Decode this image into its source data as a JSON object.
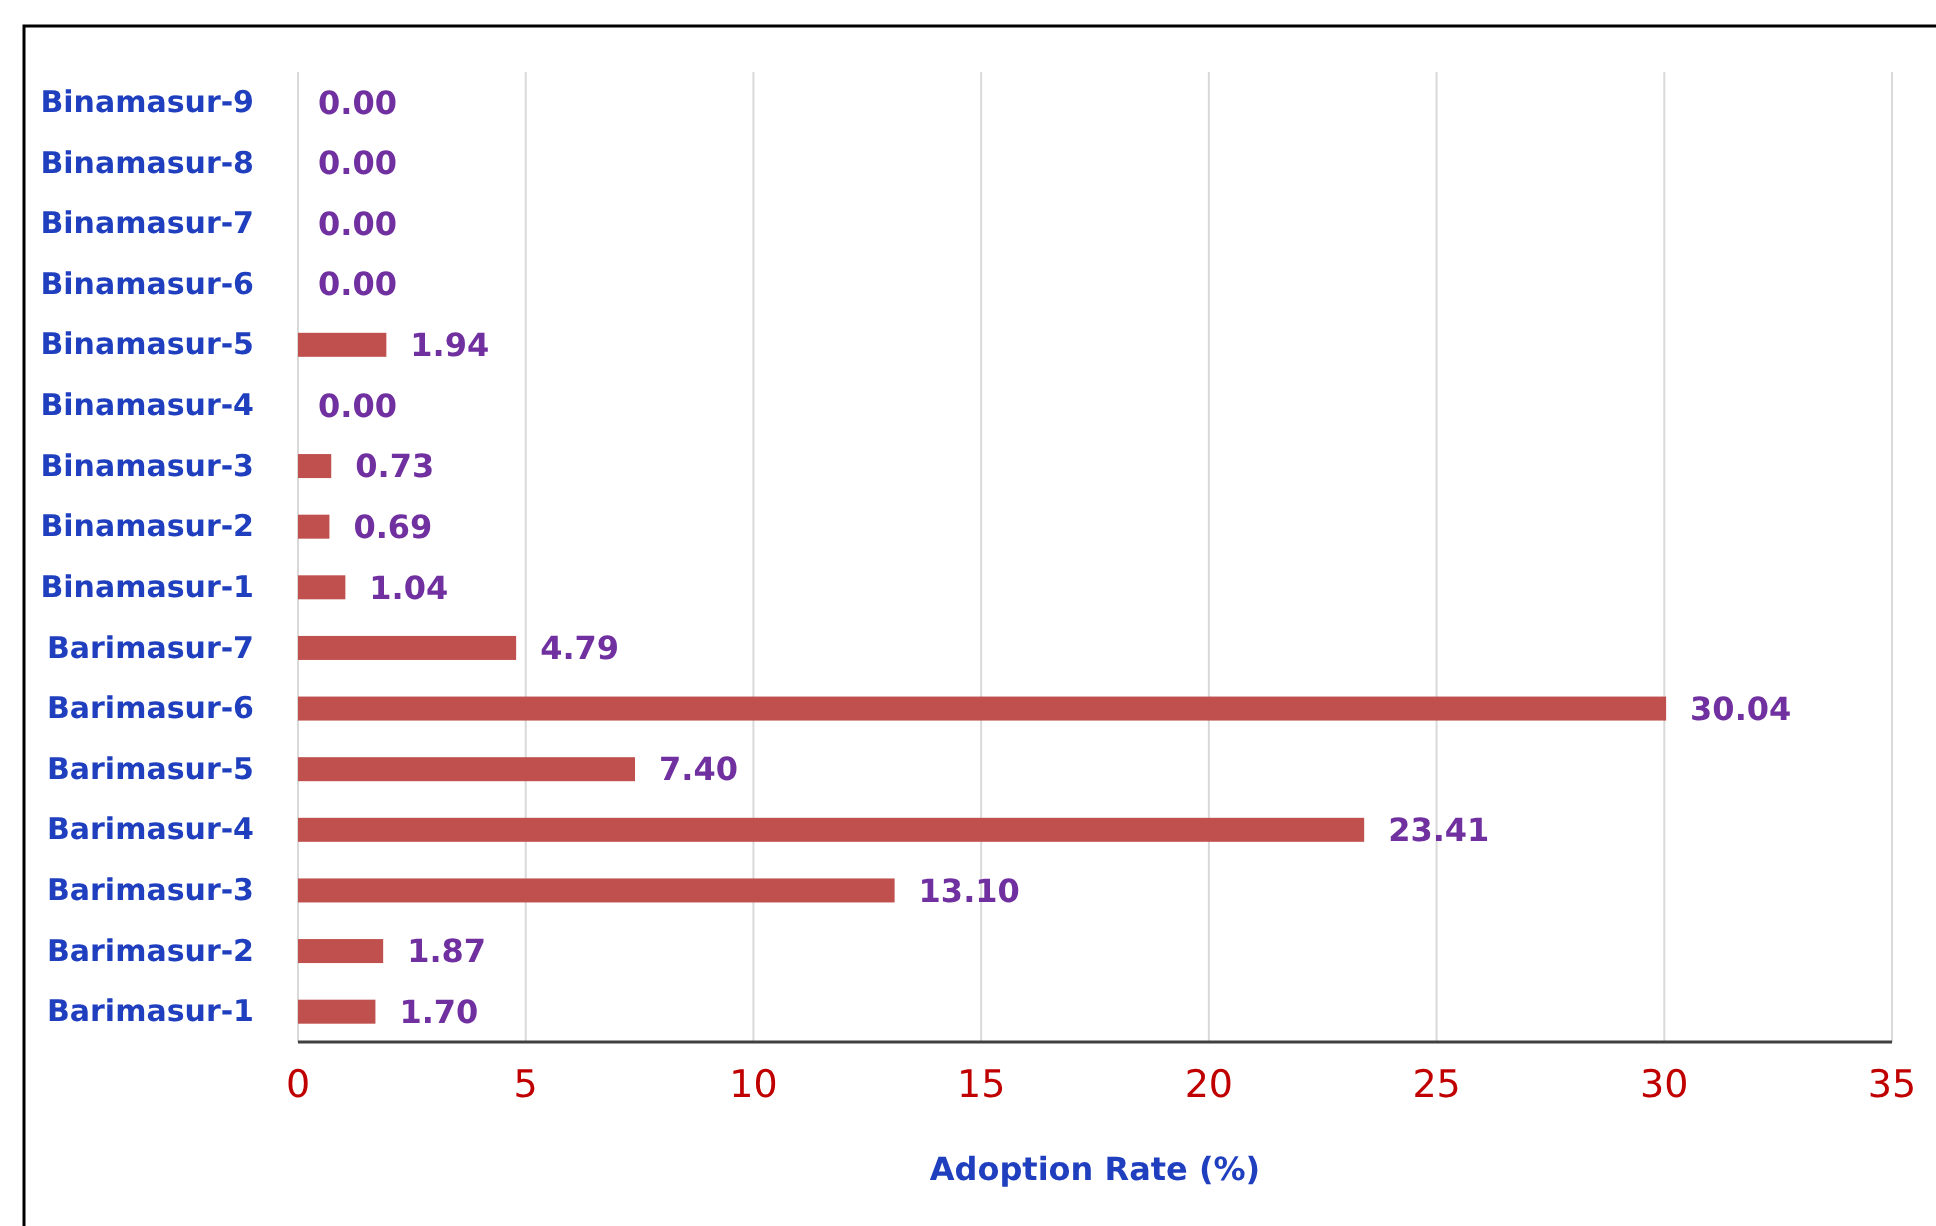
{
  "chart_data": {
    "type": "bar",
    "orientation": "horizontal",
    "xlabel": "Adoption Rate (%)",
    "categories": [
      "Binamasur-9",
      "Binamasur-8",
      "Binamasur-7",
      "Binamasur-6",
      "Binamasur-5",
      "Binamasur-4",
      "Binamasur-3",
      "Binamasur-2",
      "Binamasur-1",
      "Barimasur-7",
      "Barimasur-6",
      "Barimasur-5",
      "Barimasur-4",
      "Barimasur-3",
      "Barimasur-2",
      "Barimasur-1"
    ],
    "values": [
      0,
      0,
      0,
      0,
      1.94,
      0,
      0.73,
      0.69,
      1.04,
      4.79,
      30.04,
      7.4,
      23.41,
      13.1,
      1.87,
      1.7
    ],
    "value_labels": [
      "0.00",
      "0.00",
      "0.00",
      "0.00",
      "1.94",
      "0.00",
      "0.73",
      "0.69",
      "1.04",
      "4.79",
      "30.04",
      "7.40",
      "23.41",
      "13.10",
      "1.87",
      "1.70"
    ],
    "color": "#c0504d",
    "xlim": [
      0,
      35
    ],
    "xticks": [
      0,
      5,
      10,
      15,
      20,
      25,
      30,
      35
    ],
    "grid": "x"
  }
}
